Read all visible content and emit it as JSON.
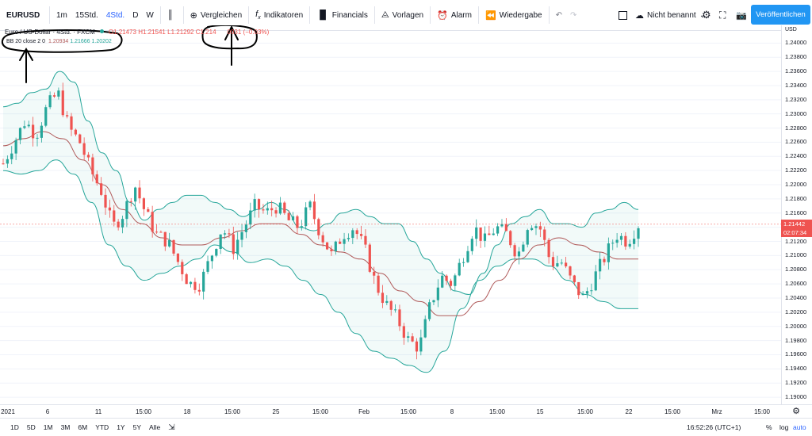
{
  "toolbar": {
    "symbol": "EURUSD",
    "intervals": [
      "1m",
      "15Std.",
      "4Std.",
      "D",
      "W"
    ],
    "active_interval": "4Std.",
    "compare": "Vergleichen",
    "indicators": "Indikatoren",
    "financials": "Financials",
    "templates": "Vorlagen",
    "alert": "Alarm",
    "replay": "Wiedergabe",
    "layout_name": "Nicht benannt",
    "publish": "Veröffentlichen"
  },
  "legend": {
    "title": "Euro / US-Dollar · 4Std. · FXCM",
    "o": "O1.21473",
    "h": "H1.21541",
    "l": "L1.21292",
    "c": "C1.214",
    "chg": "0031 (−0.03%)",
    "indicator_name": "BB 20 close 2 0",
    "bb_basis": "1.20934",
    "bb_upper": "1.21666",
    "bb_lower": "1.20202"
  },
  "price_axis": {
    "currency": "USD",
    "current_price": "1.21442",
    "countdown": "02:07:34"
  },
  "colors": {
    "up": "#26a69a",
    "down": "#ef5350",
    "band": "#26a69a",
    "basis": "#b05a5a",
    "accent": "#2962ff",
    "publish": "#2196f3",
    "annotation": "#000000"
  },
  "chart_data": {
    "type": "candlestick",
    "symbol": "EURUSD",
    "interval": "4Std.",
    "y_range": [
      1.189,
      1.2425
    ],
    "y_ticks": [
      1.24,
      1.238,
      1.236,
      1.234,
      1.232,
      1.23,
      1.228,
      1.226,
      1.224,
      1.222,
      1.22,
      1.218,
      1.216,
      1.214,
      1.212,
      1.21,
      1.208,
      1.206,
      1.204,
      1.202,
      1.2,
      1.198,
      1.196,
      1.194,
      1.192,
      1.19
    ],
    "x_ticks": [
      "2021",
      "6",
      "11",
      "15:00",
      "18",
      "15:00",
      "25",
      "15:00",
      "Feb",
      "15:00",
      "8",
      "15:00",
      "15",
      "15:00",
      "22",
      "15:00",
      "Mrz",
      "15:00"
    ],
    "close_path": [
      1.223,
      1.226,
      1.229,
      1.227,
      1.231,
      1.233,
      1.228,
      1.226,
      1.222,
      1.219,
      1.214,
      1.216,
      1.22,
      1.216,
      1.213,
      1.212,
      1.209,
      1.206,
      1.206,
      1.21,
      1.214,
      1.211,
      1.214,
      1.217,
      1.216,
      1.217,
      1.215,
      1.214,
      1.217,
      1.213,
      1.21,
      1.213,
      1.214,
      1.211,
      1.206,
      1.203,
      1.201,
      1.198,
      1.197,
      1.203,
      1.207,
      1.206,
      1.21,
      1.214,
      1.212,
      1.214,
      1.213,
      1.21,
      1.215,
      1.214,
      1.209,
      1.209,
      1.206,
      1.204,
      1.207,
      1.21,
      1.213,
      1.212,
      1.2144
    ],
    "bb_upper_path": [
      1.231,
      1.2315,
      1.233,
      1.2335,
      1.236,
      1.2345,
      1.229,
      1.2245,
      1.222,
      1.2175,
      1.215,
      1.2165,
      1.2175,
      1.2185,
      1.2185,
      1.2175,
      1.2165,
      1.2155,
      1.2165,
      1.2175,
      1.2165,
      1.214,
      1.2135,
      1.2145,
      1.216,
      1.2165,
      1.2155,
      1.2145,
      1.2145,
      1.212,
      1.2095,
      1.2075,
      1.205,
      1.2045,
      1.2075,
      1.2115,
      1.2145,
      1.2155,
      1.2165,
      1.2145,
      1.2145,
      1.214,
      1.216,
      1.2165,
      1.2175,
      1.2165
    ],
    "bb_lower_path": [
      1.222,
      1.2215,
      1.222,
      1.2235,
      1.2215,
      1.2175,
      1.2115,
      1.2085,
      1.2065,
      1.2075,
      1.2085,
      1.2095,
      1.2115,
      1.2105,
      1.209,
      1.2095,
      1.2085,
      1.2065,
      1.2045,
      1.202,
      1.199,
      1.1965,
      1.1955,
      1.1945,
      1.1935,
      1.1965,
      1.2025,
      1.2065,
      1.2085,
      1.2095,
      1.2095,
      1.2085,
      1.2065,
      1.2045,
      1.2035,
      1.2025,
      1.2025
    ],
    "bb_basis_path": [
      1.2255,
      1.2265,
      1.2275,
      1.2265,
      1.2235,
      1.22,
      1.2165,
      1.2145,
      1.2125,
      1.2115,
      1.2115,
      1.2125,
      1.2135,
      1.2145,
      1.2145,
      1.213,
      1.2115,
      1.2105,
      1.2095,
      1.2075,
      1.205,
      1.2035,
      1.2015,
      1.2015,
      1.2035,
      1.2065,
      1.2095,
      1.2115,
      1.2125,
      1.2115,
      1.2105,
      1.2095,
      1.2095
    ]
  },
  "bottombar": {
    "ranges": [
      "1D",
      "5D",
      "1M",
      "3M",
      "6M",
      "YTD",
      "1Y",
      "5Y",
      "Alle"
    ],
    "time": "16:52:26 (UTC+1)",
    "percent": "%",
    "log": "log",
    "auto": "auto"
  }
}
